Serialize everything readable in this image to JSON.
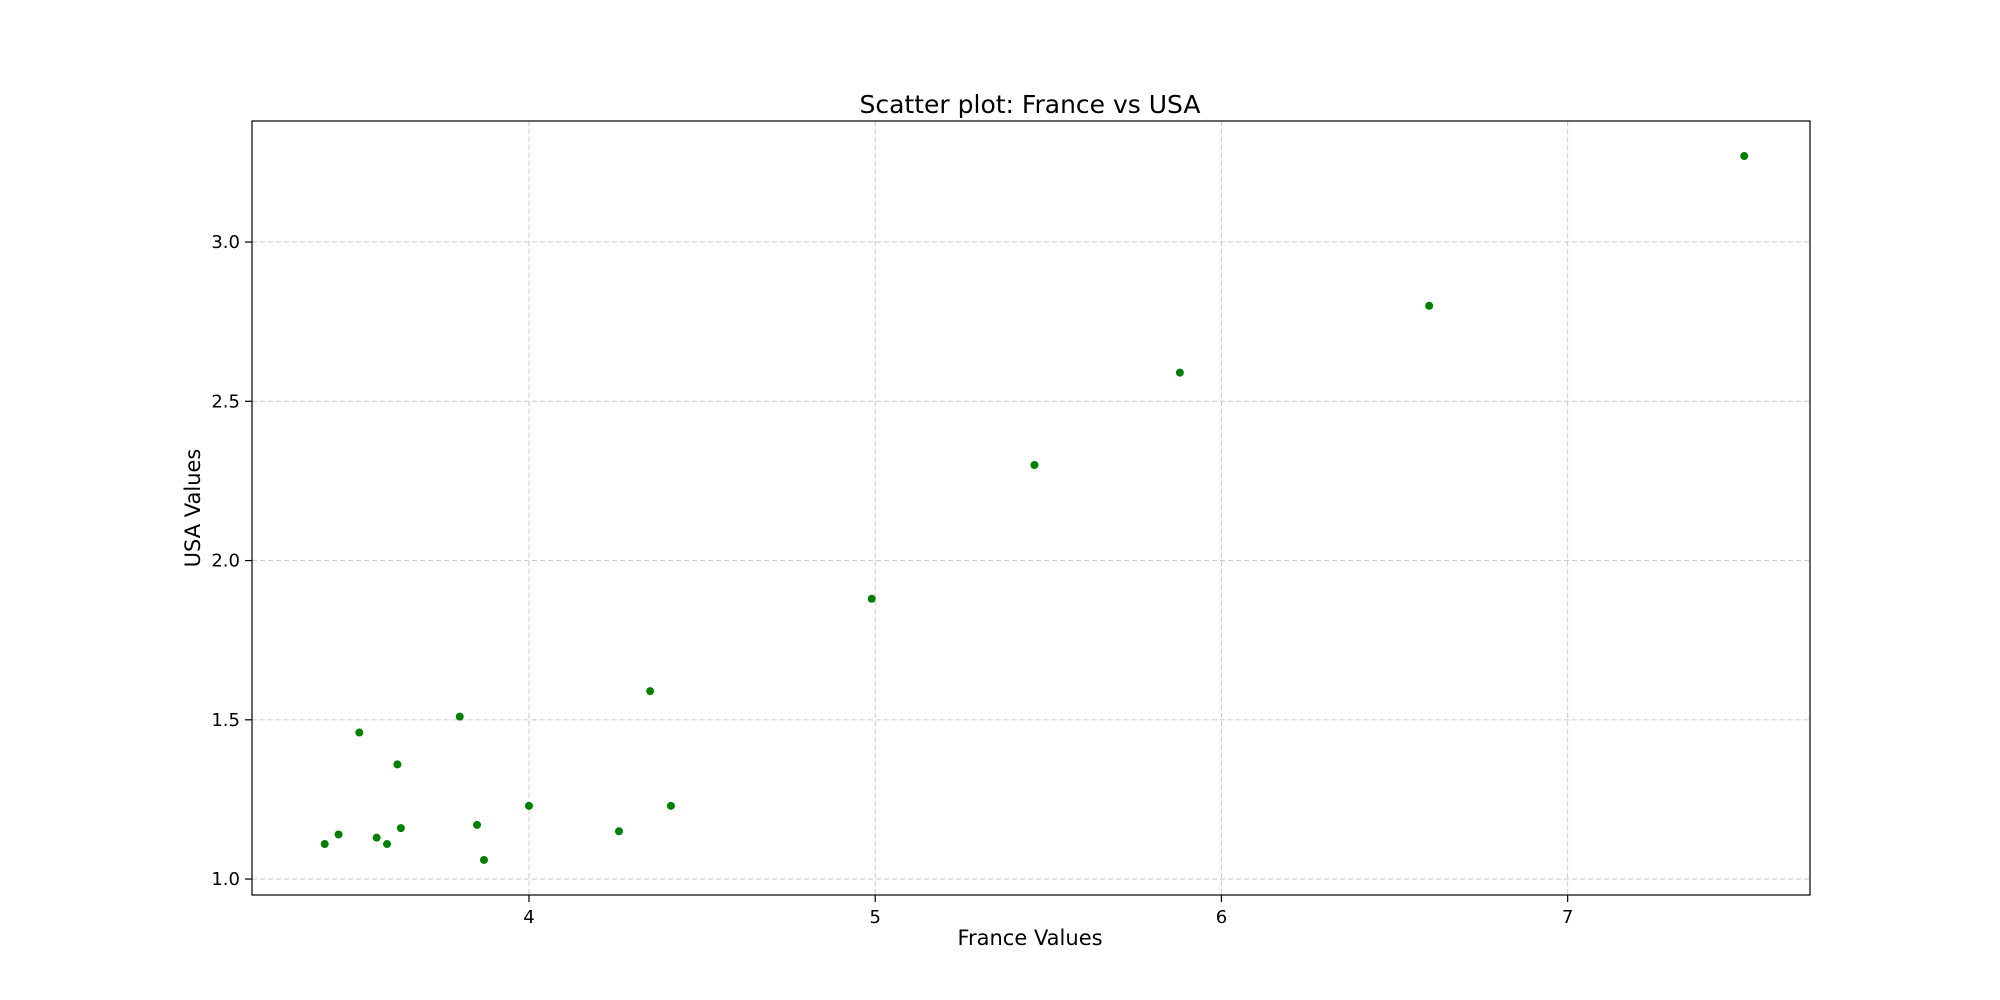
{
  "chart_data": {
    "type": "scatter",
    "title": "Scatter plot: France vs USA",
    "xlabel": "France Values",
    "ylabel": "USA Values",
    "xlim": [
      3.2,
      7.7
    ],
    "ylim": [
      0.95,
      3.38
    ],
    "xticks": [
      4,
      5,
      6,
      7
    ],
    "yticks": [
      1.0,
      1.5,
      2.0,
      2.5,
      3.0
    ],
    "xtick_labels": [
      "4",
      "5",
      "6",
      "7"
    ],
    "ytick_labels": [
      "1.0",
      "1.5",
      "2.0",
      "2.5",
      "3.0"
    ],
    "grid": true,
    "marker_color": "#008000",
    "points": [
      {
        "x": 3.41,
        "y": 1.11
      },
      {
        "x": 3.45,
        "y": 1.14
      },
      {
        "x": 3.51,
        "y": 1.46
      },
      {
        "x": 3.56,
        "y": 1.13
      },
      {
        "x": 3.59,
        "y": 1.11
      },
      {
        "x": 3.62,
        "y": 1.36
      },
      {
        "x": 3.63,
        "y": 1.16
      },
      {
        "x": 3.8,
        "y": 1.51
      },
      {
        "x": 3.85,
        "y": 1.17
      },
      {
        "x": 3.87,
        "y": 1.06
      },
      {
        "x": 4.0,
        "y": 1.23
      },
      {
        "x": 4.26,
        "y": 1.15
      },
      {
        "x": 4.35,
        "y": 1.59
      },
      {
        "x": 4.41,
        "y": 1.23
      },
      {
        "x": 4.99,
        "y": 1.88
      },
      {
        "x": 5.46,
        "y": 2.3
      },
      {
        "x": 5.88,
        "y": 2.59
      },
      {
        "x": 6.6,
        "y": 2.8
      },
      {
        "x": 7.51,
        "y": 3.27
      }
    ]
  }
}
